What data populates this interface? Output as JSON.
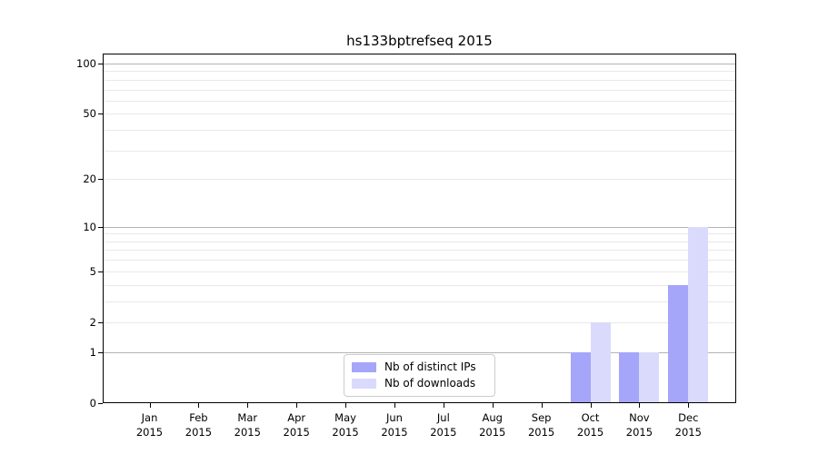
{
  "chart_data": {
    "type": "bar",
    "title": "hs133bptrefseq 2015",
    "x_categories": [
      {
        "month": "Jan",
        "year": "2015"
      },
      {
        "month": "Feb",
        "year": "2015"
      },
      {
        "month": "Mar",
        "year": "2015"
      },
      {
        "month": "Apr",
        "year": "2015"
      },
      {
        "month": "May",
        "year": "2015"
      },
      {
        "month": "Jun",
        "year": "2015"
      },
      {
        "month": "Jul",
        "year": "2015"
      },
      {
        "month": "Aug",
        "year": "2015"
      },
      {
        "month": "Sep",
        "year": "2015"
      },
      {
        "month": "Oct",
        "year": "2015"
      },
      {
        "month": "Nov",
        "year": "2015"
      },
      {
        "month": "Dec",
        "year": "2015"
      }
    ],
    "series": [
      {
        "name": "Nb of distinct IPs",
        "color": "#a5a5fa",
        "values": [
          0,
          0,
          0,
          0,
          0,
          0,
          0,
          0,
          0,
          1,
          1,
          4
        ]
      },
      {
        "name": "Nb of downloads",
        "color": "#dadafc",
        "values": [
          0,
          0,
          0,
          0,
          0,
          0,
          0,
          0,
          0,
          2,
          1,
          10
        ]
      }
    ],
    "y_axis": {
      "scale": "symlog",
      "tick_values": [
        0,
        1,
        2,
        5,
        10,
        20,
        50,
        100
      ],
      "tick_labels": [
        "0",
        "1",
        "2",
        "5",
        "10",
        "20",
        "50",
        "100"
      ],
      "major_gridlines": [
        1,
        10,
        100
      ],
      "minor_gridlines": [
        2,
        3,
        4,
        5,
        6,
        7,
        8,
        9,
        20,
        30,
        40,
        50,
        60,
        70,
        80,
        90
      ],
      "ylim": [
        0,
        100
      ]
    },
    "legend": {
      "position": "bottom-center",
      "entries": [
        "Nb of distinct IPs",
        "Nb of downloads"
      ]
    },
    "colors": {
      "major_grid": "#b3b3b3",
      "minor_grid": "#e9e9e9",
      "spine": "#000000"
    }
  }
}
